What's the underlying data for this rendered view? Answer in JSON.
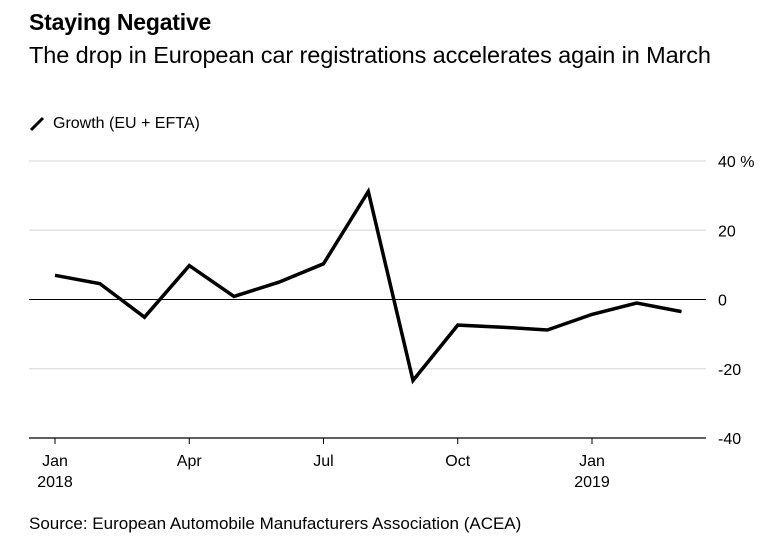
{
  "title": "Staying Negative",
  "subtitle": "The drop in European car registrations accelerates again in March",
  "legend": {
    "label": "Growth (EU + EFTA)",
    "icon": "slash-line-icon"
  },
  "source": "Source: European Automobile Manufacturers Association (ACEA)",
  "colors": {
    "line": "#000000",
    "grid": "#dddddd",
    "zero": "#000000",
    "axis": "#000000"
  },
  "chart_data": {
    "type": "line",
    "title": "Staying Negative",
    "xlabel": "",
    "ylabel": "",
    "x": [
      "2018-01",
      "2018-02",
      "2018-03",
      "2018-04",
      "2018-05",
      "2018-06",
      "2018-07",
      "2018-08",
      "2018-09",
      "2018-10",
      "2018-11",
      "2018-12",
      "2019-01",
      "2019-02",
      "2019-03"
    ],
    "series": [
      {
        "name": "Growth (EU + EFTA)",
        "values": [
          7.0,
          4.6,
          -5.1,
          9.8,
          0.9,
          5.0,
          10.3,
          31.2,
          -23.4,
          -7.4,
          -8.0,
          -8.8,
          -4.3,
          -1.0,
          -3.5
        ]
      }
    ],
    "ylim": [
      -40,
      40
    ],
    "yticks": [
      {
        "value": 40,
        "label": "40 %"
      },
      {
        "value": 20,
        "label": "20"
      },
      {
        "value": 0,
        "label": "0"
      },
      {
        "value": -20,
        "label": "-20"
      },
      {
        "value": -40,
        "label": "-40"
      }
    ],
    "xticks": [
      {
        "index": 0,
        "line1": "Jan",
        "line2": "2018"
      },
      {
        "index": 3,
        "line1": "Apr",
        "line2": ""
      },
      {
        "index": 6,
        "line1": "Jul",
        "line2": ""
      },
      {
        "index": 9,
        "line1": "Oct",
        "line2": ""
      },
      {
        "index": 12,
        "line1": "Jan",
        "line2": "2019"
      }
    ],
    "grid": true,
    "legend_position": "top-left"
  }
}
